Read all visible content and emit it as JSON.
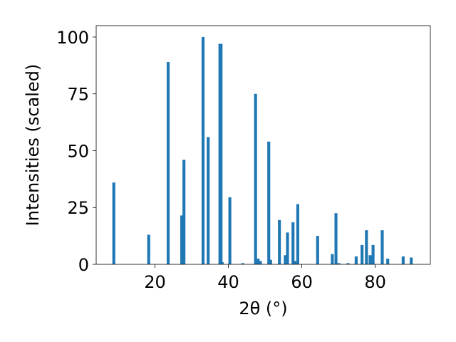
{
  "chart_data": {
    "type": "bar",
    "title": "",
    "xlabel": "2θ (°)",
    "ylabel": "Intensities (scaled)",
    "xlim": [
      4,
      95
    ],
    "ylim": [
      0,
      105
    ],
    "x_ticks": [
      20,
      40,
      60,
      80
    ],
    "y_ticks": [
      0,
      25,
      50,
      75,
      100
    ],
    "bar_color": "#1f77b4",
    "bar_width": 0.8,
    "grid": false,
    "legend": "none",
    "series": [
      {
        "x": [
          8.8,
          18.3,
          23.6,
          27.3,
          27.9,
          33.1,
          34.5,
          37.7,
          38.0,
          38.3,
          40.4,
          43.9,
          47.4,
          48.1,
          48.7,
          51.0,
          51.5,
          53.9,
          55.5,
          56.1,
          57.6,
          58.1,
          58.9,
          64.3,
          68.3,
          69.3,
          70.1,
          72.6,
          74.8,
          76.4,
          77.6,
          78.6,
          79.4,
          81.9,
          83.4,
          87.6,
          89.8
        ],
        "values": [
          36,
          13,
          89,
          21.5,
          46,
          100,
          56,
          97,
          97,
          1,
          29.5,
          0.5,
          75,
          2.5,
          1.5,
          54,
          2,
          19.5,
          4,
          14,
          18.5,
          1.5,
          26.5,
          12.5,
          4.5,
          22.5,
          0.5,
          0.5,
          3.5,
          8.5,
          15,
          4,
          8.5,
          15,
          2.5,
          3.5,
          3
        ]
      }
    ]
  }
}
